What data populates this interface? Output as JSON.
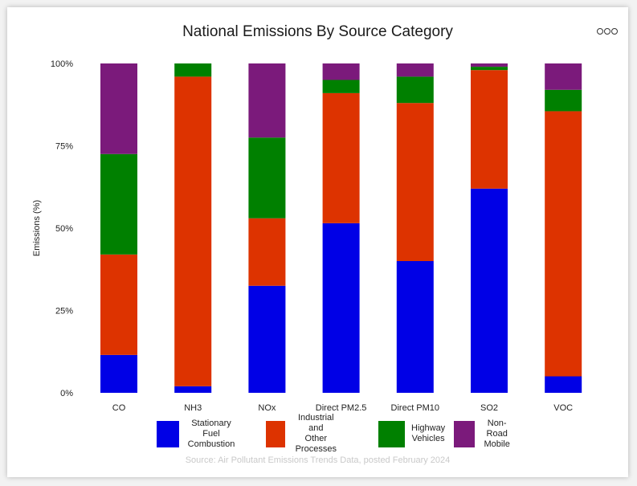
{
  "chart_data": {
    "type": "bar",
    "stacked": true,
    "title": "National Emissions By Source Category",
    "xlabel": "",
    "ylabel": "Emissions (%)",
    "ylim": [
      0,
      100
    ],
    "yticks": [
      "0%",
      "25%",
      "50%",
      "75%",
      "100%"
    ],
    "categories": [
      "CO",
      "NH3",
      "NOx",
      "Direct PM2.5",
      "Direct PM10",
      "SO2",
      "VOC"
    ],
    "series": [
      {
        "name": "Stationary Fuel\nCombustion",
        "color": "#0000e6",
        "values": [
          11.5,
          2.0,
          32.5,
          51.5,
          40.0,
          62.0,
          5.0
        ]
      },
      {
        "name": "Industrial and\nOther Processes",
        "color": "#dd3300",
        "values": [
          30.5,
          94.0,
          20.5,
          39.5,
          48.0,
          36.0,
          80.5
        ]
      },
      {
        "name": "Highway\nVehicles",
        "color": "#008000",
        "values": [
          30.5,
          4.0,
          24.5,
          4.0,
          8.0,
          1.0,
          6.5
        ]
      },
      {
        "name": "Non-Road\nMobile",
        "color": "#7b1a7b",
        "values": [
          27.5,
          0.0,
          22.5,
          5.0,
          4.0,
          1.0,
          8.0
        ]
      }
    ],
    "grid": false,
    "legend_position": "bottom"
  },
  "header": {
    "menu_icon": "more-options-icon"
  },
  "footer": {
    "source": "Source: Air Pollutant Emissions Trends Data, posted February 2024"
  }
}
